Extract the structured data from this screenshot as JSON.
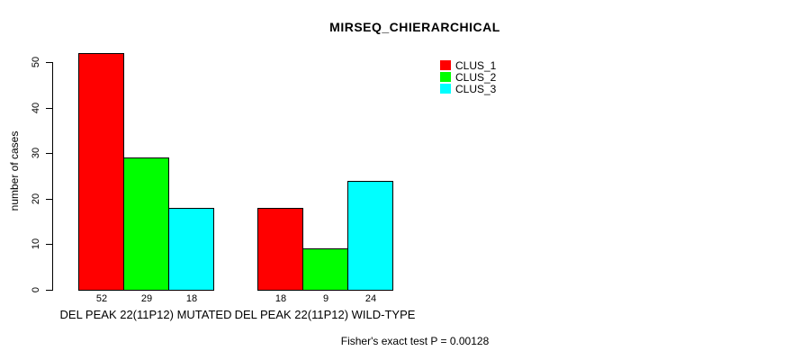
{
  "chart_data": {
    "type": "bar",
    "title": "MIRSEQ_CHIERARCHICAL",
    "ylabel": "number of cases",
    "xlabel": "",
    "ylim": [
      0,
      50
    ],
    "yticks": [
      0,
      10,
      20,
      30,
      40,
      50
    ],
    "categories": [
      "DEL PEAK 22(11P12) MUTATED",
      "DEL PEAK 22(11P12) WILD-TYPE"
    ],
    "series": [
      {
        "name": "CLUS_1",
        "color": "#FF0000",
        "values": [
          52,
          18
        ]
      },
      {
        "name": "CLUS_2",
        "color": "#00FF00",
        "values": [
          29,
          9
        ]
      },
      {
        "name": "CLUS_3",
        "color": "#00FFFF",
        "values": [
          18,
          24
        ]
      }
    ],
    "bar_value_labels": [
      [
        "52",
        "29",
        "18"
      ],
      [
        "18",
        "9",
        "24"
      ]
    ],
    "legend_position": "top-right",
    "grid": false,
    "footnote": "Fisher's exact test P = 0.00128"
  }
}
